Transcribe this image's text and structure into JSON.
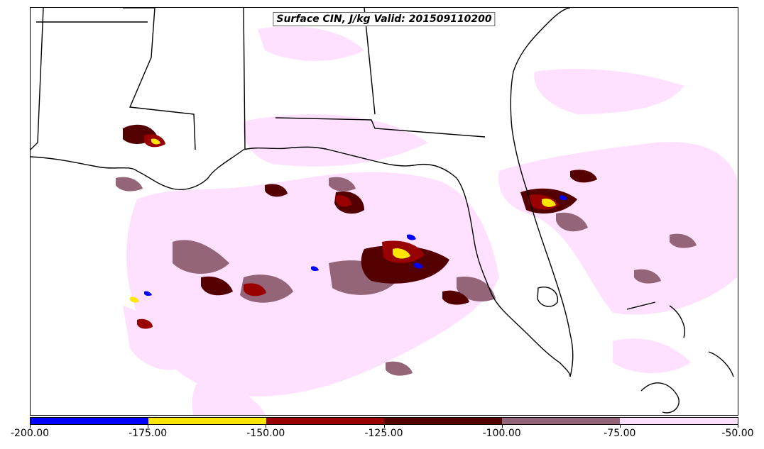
{
  "title": "Surface CIN, J/kg Valid: 201509110200",
  "colorbar": {
    "bins": [
      {
        "from": -200,
        "to": -175,
        "color": "#0000ff"
      },
      {
        "from": -175,
        "to": -150,
        "color": "#ffe600"
      },
      {
        "from": -150,
        "to": -125,
        "color": "#990000"
      },
      {
        "from": -125,
        "to": -100,
        "color": "#550000"
      },
      {
        "from": -100,
        "to": -75,
        "color": "#946478"
      },
      {
        "from": -75,
        "to": -50,
        "color": "#ffe1ff"
      }
    ],
    "tick_labels": [
      "-200.00",
      "-175.00",
      "-150.00",
      "-125.00",
      "-100.00",
      "-75.00",
      "-50.00"
    ]
  }
}
